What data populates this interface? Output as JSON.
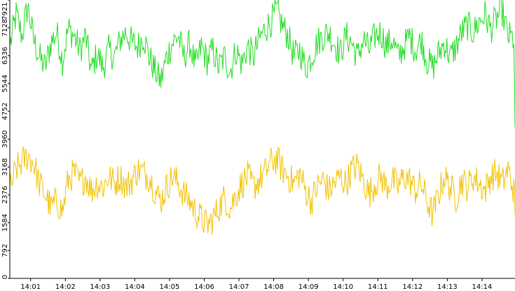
{
  "chart_data": {
    "type": "line",
    "title": "",
    "xlabel": "",
    "ylabel": "",
    "x_ticks": [
      "14:01",
      "14:02",
      "14:03",
      "14:04",
      "14:05",
      "14:06",
      "14:07",
      "14:08",
      "14:09",
      "14:10",
      "14:11",
      "14:12",
      "14:13",
      "14:14"
    ],
    "x_range": [
      "14:00:24",
      "14:14:57"
    ],
    "y_ticks": [
      "0",
      "792",
      "1584",
      "2376",
      "3168",
      "3960",
      "4752",
      "5544",
      "6336",
      "7128",
      "7921"
    ],
    "ylim": [
      0,
      7921
    ],
    "grid": false,
    "series": [
      {
        "color": "#22dd22",
        "points": [
          [
            "14:00:24",
            6600
          ],
          [
            "14:00:35",
            7500
          ],
          [
            "14:00:45",
            6900
          ],
          [
            "14:00:55",
            7750
          ],
          [
            "14:01:05",
            6800
          ],
          [
            "14:01:15",
            6300
          ],
          [
            "14:01:25",
            6000
          ],
          [
            "14:01:35",
            6700
          ],
          [
            "14:01:45",
            7000
          ],
          [
            "14:01:55",
            6200
          ],
          [
            "14:02:05",
            7100
          ],
          [
            "14:02:15",
            6900
          ],
          [
            "14:02:25",
            6500
          ],
          [
            "14:02:35",
            6900
          ],
          [
            "14:02:45",
            5900
          ],
          [
            "14:02:55",
            6400
          ],
          [
            "14:03:05",
            6000
          ],
          [
            "14:03:15",
            6500
          ],
          [
            "14:03:25",
            6300
          ],
          [
            "14:03:35",
            6800
          ],
          [
            "14:03:45",
            7000
          ],
          [
            "14:03:55",
            6700
          ],
          [
            "14:04:05",
            6600
          ],
          [
            "14:04:15",
            6900
          ],
          [
            "14:04:25",
            6300
          ],
          [
            "14:04:35",
            5900
          ],
          [
            "14:04:45",
            5600
          ],
          [
            "14:04:55",
            6300
          ],
          [
            "14:05:05",
            6700
          ],
          [
            "14:05:15",
            6900
          ],
          [
            "14:05:25",
            6300
          ],
          [
            "14:05:35",
            6700
          ],
          [
            "14:05:45",
            6000
          ],
          [
            "14:05:55",
            6600
          ],
          [
            "14:06:05",
            6200
          ],
          [
            "14:06:15",
            6500
          ],
          [
            "14:06:25",
            6000
          ],
          [
            "14:06:35",
            6300
          ],
          [
            "14:06:45",
            5900
          ],
          [
            "14:06:55",
            6500
          ],
          [
            "14:07:05",
            6100
          ],
          [
            "14:07:15",
            6600
          ],
          [
            "14:07:25",
            6300
          ],
          [
            "14:07:35",
            6800
          ],
          [
            "14:07:45",
            7100
          ],
          [
            "14:07:55",
            7300
          ],
          [
            "14:08:05",
            7600
          ],
          [
            "14:08:15",
            7200
          ],
          [
            "14:08:25",
            6900
          ],
          [
            "14:08:35",
            6300
          ],
          [
            "14:08:45",
            6500
          ],
          [
            "14:08:55",
            6000
          ],
          [
            "14:09:05",
            6300
          ],
          [
            "14:09:15",
            6700
          ],
          [
            "14:09:25",
            6900
          ],
          [
            "14:09:35",
            7000
          ],
          [
            "14:09:45",
            6700
          ],
          [
            "14:09:55",
            6400
          ],
          [
            "14:10:05",
            6900
          ],
          [
            "14:10:15",
            6700
          ],
          [
            "14:10:25",
            6300
          ],
          [
            "14:10:35",
            6800
          ],
          [
            "14:10:45",
            6500
          ],
          [
            "14:10:55",
            6900
          ],
          [
            "14:11:05",
            7000
          ],
          [
            "14:11:15",
            6600
          ],
          [
            "14:11:25",
            6800
          ],
          [
            "14:11:35",
            6300
          ],
          [
            "14:11:45",
            6600
          ],
          [
            "14:11:55",
            6900
          ],
          [
            "14:12:05",
            6500
          ],
          [
            "14:12:15",
            6800
          ],
          [
            "14:12:25",
            6200
          ],
          [
            "14:12:35",
            6000
          ],
          [
            "14:12:45",
            6400
          ],
          [
            "14:12:55",
            6700
          ],
          [
            "14:13:05",
            6300
          ],
          [
            "14:13:15",
            6600
          ],
          [
            "14:13:25",
            7000
          ],
          [
            "14:13:35",
            7200
          ],
          [
            "14:13:45",
            7000
          ],
          [
            "14:13:55",
            7300
          ],
          [
            "14:14:05",
            7500
          ],
          [
            "14:14:15",
            7100
          ],
          [
            "14:14:25",
            7400
          ],
          [
            "14:14:35",
            7600
          ],
          [
            "14:14:45",
            6900
          ],
          [
            "14:14:55",
            6800
          ],
          [
            "14:14:57",
            4300
          ]
        ]
      },
      {
        "color": "#f2c200",
        "points": [
          [
            "14:00:24",
            2500
          ],
          [
            "14:00:35",
            3100
          ],
          [
            "14:00:45",
            3300
          ],
          [
            "14:00:55",
            3500
          ],
          [
            "14:01:05",
            3300
          ],
          [
            "14:01:15",
            2700
          ],
          [
            "14:01:25",
            2400
          ],
          [
            "14:01:35",
            2000
          ],
          [
            "14:01:45",
            2200
          ],
          [
            "14:01:55",
            1900
          ],
          [
            "14:02:05",
            2800
          ],
          [
            "14:02:15",
            3000
          ],
          [
            "14:02:25",
            2700
          ],
          [
            "14:02:35",
            2900
          ],
          [
            "14:02:45",
            2500
          ],
          [
            "14:02:55",
            2700
          ],
          [
            "14:03:05",
            2600
          ],
          [
            "14:03:15",
            2900
          ],
          [
            "14:03:25",
            2700
          ],
          [
            "14:03:35",
            2900
          ],
          [
            "14:03:45",
            2600
          ],
          [
            "14:03:55",
            2800
          ],
          [
            "14:04:05",
            3100
          ],
          [
            "14:04:15",
            3000
          ],
          [
            "14:04:25",
            2900
          ],
          [
            "14:04:35",
            2500
          ],
          [
            "14:04:45",
            2200
          ],
          [
            "14:04:55",
            2600
          ],
          [
            "14:05:05",
            2900
          ],
          [
            "14:05:15",
            2700
          ],
          [
            "14:05:25",
            2400
          ],
          [
            "14:05:35",
            2200
          ],
          [
            "14:05:45",
            1900
          ],
          [
            "14:05:55",
            1700
          ],
          [
            "14:06:05",
            1500
          ],
          [
            "14:06:15",
            1700
          ],
          [
            "14:06:25",
            2000
          ],
          [
            "14:06:35",
            2300
          ],
          [
            "14:06:45",
            2000
          ],
          [
            "14:06:55",
            2400
          ],
          [
            "14:07:05",
            2700
          ],
          [
            "14:07:15",
            2900
          ],
          [
            "14:07:25",
            2600
          ],
          [
            "14:07:35",
            2800
          ],
          [
            "14:07:45",
            3000
          ],
          [
            "14:07:55",
            3300
          ],
          [
            "14:08:05",
            3400
          ],
          [
            "14:08:15",
            3100
          ],
          [
            "14:08:25",
            2900
          ],
          [
            "14:08:35",
            2700
          ],
          [
            "14:08:45",
            3000
          ],
          [
            "14:08:55",
            2500
          ],
          [
            "14:09:05",
            2200
          ],
          [
            "14:09:15",
            2600
          ],
          [
            "14:09:25",
            2800
          ],
          [
            "14:09:35",
            2500
          ],
          [
            "14:09:45",
            2700
          ],
          [
            "14:09:55",
            2900
          ],
          [
            "14:10:05",
            2700
          ],
          [
            "14:10:15",
            3100
          ],
          [
            "14:10:25",
            3200
          ],
          [
            "14:10:35",
            2800
          ],
          [
            "14:10:45",
            2400
          ],
          [
            "14:10:55",
            2700
          ],
          [
            "14:11:05",
            2900
          ],
          [
            "14:11:15",
            2600
          ],
          [
            "14:11:25",
            2800
          ],
          [
            "14:11:35",
            2600
          ],
          [
            "14:11:45",
            2900
          ],
          [
            "14:11:55",
            2800
          ],
          [
            "14:12:05",
            2500
          ],
          [
            "14:12:15",
            2700
          ],
          [
            "14:12:25",
            2200
          ],
          [
            "14:12:35",
            1800
          ],
          [
            "14:12:45",
            2400
          ],
          [
            "14:12:55",
            2900
          ],
          [
            "14:13:05",
            2600
          ],
          [
            "14:13:15",
            2300
          ],
          [
            "14:13:25",
            2800
          ],
          [
            "14:13:35",
            2600
          ],
          [
            "14:13:45",
            2900
          ],
          [
            "14:13:55",
            2700
          ],
          [
            "14:14:05",
            2500
          ],
          [
            "14:14:15",
            2900
          ],
          [
            "14:14:25",
            3000
          ],
          [
            "14:14:35",
            2700
          ],
          [
            "14:14:45",
            3100
          ],
          [
            "14:14:55",
            2500
          ],
          [
            "14:14:57",
            1800
          ]
        ]
      }
    ]
  }
}
